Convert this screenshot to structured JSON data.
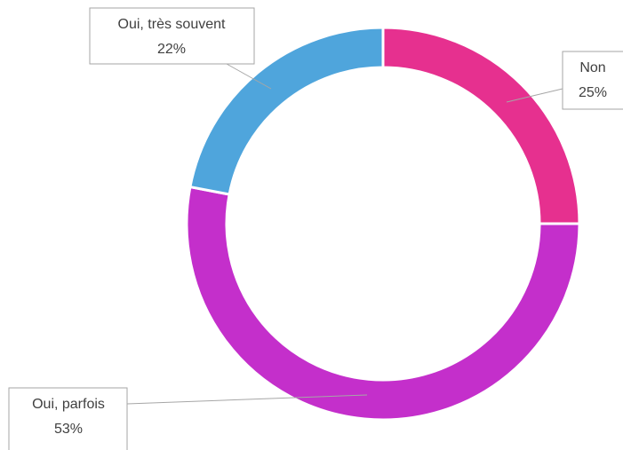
{
  "chart_data": {
    "type": "donut",
    "categories": [
      "Non",
      "Oui, parfois",
      "Oui, très souvent"
    ],
    "values": [
      25,
      53,
      22
    ],
    "value_labels": [
      "25%",
      "53%",
      "22%"
    ],
    "colors": [
      "#e6308f",
      "#c42fcb",
      "#4fa5dc"
    ]
  }
}
